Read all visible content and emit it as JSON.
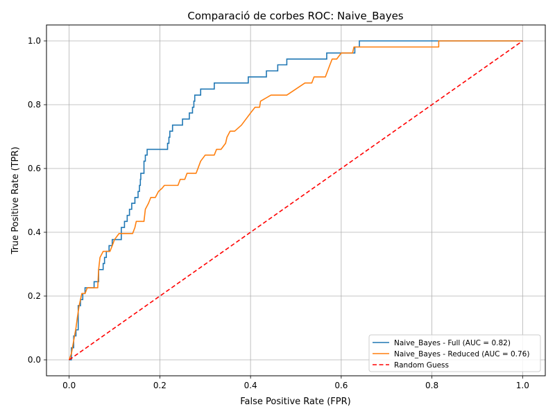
{
  "chart_data": {
    "type": "line",
    "title": "Comparació de corbes ROC: Naive_Bayes",
    "xlabel": "False Positive Rate (FPR)",
    "ylabel": "True Positive Rate (TPR)",
    "xlim": [
      -0.05,
      1.05
    ],
    "ylim": [
      -0.05,
      1.05
    ],
    "xticks": [
      0.0,
      0.2,
      0.4,
      0.6,
      0.8,
      1.0
    ],
    "xtick_labels": [
      "0.0",
      "0.2",
      "0.4",
      "0.6",
      "0.8",
      "1.0"
    ],
    "yticks": [
      0.0,
      0.2,
      0.4,
      0.6,
      0.8,
      1.0
    ],
    "ytick_labels": [
      "0.0",
      "0.2",
      "0.4",
      "0.6",
      "0.8",
      "1.0"
    ],
    "grid": true,
    "legend_position": "lower-right",
    "series": [
      {
        "name": "Naive_Bayes - Full (AUC = 0.82)",
        "color": "#1f77b4",
        "style": "solid",
        "step": true,
        "points": [
          [
            0.0,
            0.0
          ],
          [
            0.005,
            0.0
          ],
          [
            0.005,
            0.038
          ],
          [
            0.01,
            0.038
          ],
          [
            0.01,
            0.075
          ],
          [
            0.015,
            0.075
          ],
          [
            0.015,
            0.094
          ],
          [
            0.02,
            0.094
          ],
          [
            0.02,
            0.17
          ],
          [
            0.025,
            0.17
          ],
          [
            0.025,
            0.189
          ],
          [
            0.03,
            0.189
          ],
          [
            0.03,
            0.208
          ],
          [
            0.035,
            0.208
          ],
          [
            0.035,
            0.226
          ],
          [
            0.055,
            0.226
          ],
          [
            0.055,
            0.245
          ],
          [
            0.065,
            0.245
          ],
          [
            0.065,
            0.283
          ],
          [
            0.075,
            0.283
          ],
          [
            0.075,
            0.302
          ],
          [
            0.078,
            0.302
          ],
          [
            0.078,
            0.321
          ],
          [
            0.082,
            0.321
          ],
          [
            0.082,
            0.34
          ],
          [
            0.088,
            0.34
          ],
          [
            0.088,
            0.358
          ],
          [
            0.095,
            0.358
          ],
          [
            0.095,
            0.377
          ],
          [
            0.115,
            0.377
          ],
          [
            0.115,
            0.415
          ],
          [
            0.122,
            0.415
          ],
          [
            0.122,
            0.434
          ],
          [
            0.128,
            0.434
          ],
          [
            0.128,
            0.453
          ],
          [
            0.133,
            0.453
          ],
          [
            0.133,
            0.472
          ],
          [
            0.138,
            0.472
          ],
          [
            0.138,
            0.491
          ],
          [
            0.145,
            0.491
          ],
          [
            0.145,
            0.509
          ],
          [
            0.152,
            0.509
          ],
          [
            0.152,
            0.528
          ],
          [
            0.155,
            0.528
          ],
          [
            0.155,
            0.547
          ],
          [
            0.157,
            0.547
          ],
          [
            0.157,
            0.566
          ],
          [
            0.158,
            0.566
          ],
          [
            0.158,
            0.585
          ],
          [
            0.165,
            0.585
          ],
          [
            0.165,
            0.623
          ],
          [
            0.168,
            0.623
          ],
          [
            0.168,
            0.642
          ],
          [
            0.172,
            0.642
          ],
          [
            0.172,
            0.66
          ],
          [
            0.217,
            0.66
          ],
          [
            0.217,
            0.679
          ],
          [
            0.22,
            0.679
          ],
          [
            0.22,
            0.698
          ],
          [
            0.222,
            0.698
          ],
          [
            0.222,
            0.717
          ],
          [
            0.228,
            0.717
          ],
          [
            0.228,
            0.736
          ],
          [
            0.25,
            0.736
          ],
          [
            0.25,
            0.755
          ],
          [
            0.265,
            0.755
          ],
          [
            0.265,
            0.774
          ],
          [
            0.272,
            0.774
          ],
          [
            0.272,
            0.792
          ],
          [
            0.275,
            0.792
          ],
          [
            0.275,
            0.811
          ],
          [
            0.277,
            0.811
          ],
          [
            0.277,
            0.83
          ],
          [
            0.29,
            0.83
          ],
          [
            0.29,
            0.849
          ],
          [
            0.32,
            0.849
          ],
          [
            0.32,
            0.868
          ],
          [
            0.395,
            0.868
          ],
          [
            0.395,
            0.887
          ],
          [
            0.435,
            0.887
          ],
          [
            0.435,
            0.906
          ],
          [
            0.46,
            0.906
          ],
          [
            0.46,
            0.925
          ],
          [
            0.48,
            0.925
          ],
          [
            0.48,
            0.943
          ],
          [
            0.568,
            0.943
          ],
          [
            0.568,
            0.962
          ],
          [
            0.63,
            0.962
          ],
          [
            0.63,
            0.981
          ],
          [
            0.64,
            0.981
          ],
          [
            0.64,
            1.0
          ],
          [
            1.0,
            1.0
          ]
        ]
      },
      {
        "name": "Naive_Bayes - Reduced (AUC = 0.76)",
        "color": "#ff7f0e",
        "style": "solid",
        "step": false,
        "points": [
          [
            0.0,
            0.0
          ],
          [
            0.005,
            0.02
          ],
          [
            0.01,
            0.06
          ],
          [
            0.015,
            0.1
          ],
          [
            0.018,
            0.132
          ],
          [
            0.022,
            0.17
          ],
          [
            0.025,
            0.189
          ],
          [
            0.028,
            0.208
          ],
          [
            0.035,
            0.208
          ],
          [
            0.04,
            0.226
          ],
          [
            0.063,
            0.226
          ],
          [
            0.065,
            0.283
          ],
          [
            0.068,
            0.321
          ],
          [
            0.075,
            0.34
          ],
          [
            0.09,
            0.34
          ],
          [
            0.095,
            0.358
          ],
          [
            0.1,
            0.377
          ],
          [
            0.11,
            0.396
          ],
          [
            0.14,
            0.396
          ],
          [
            0.145,
            0.415
          ],
          [
            0.148,
            0.434
          ],
          [
            0.165,
            0.434
          ],
          [
            0.168,
            0.472
          ],
          [
            0.175,
            0.491
          ],
          [
            0.18,
            0.509
          ],
          [
            0.19,
            0.509
          ],
          [
            0.197,
            0.528
          ],
          [
            0.205,
            0.538
          ],
          [
            0.21,
            0.547
          ],
          [
            0.23,
            0.547
          ],
          [
            0.24,
            0.547
          ],
          [
            0.245,
            0.566
          ],
          [
            0.255,
            0.566
          ],
          [
            0.26,
            0.585
          ],
          [
            0.28,
            0.585
          ],
          [
            0.285,
            0.604
          ],
          [
            0.29,
            0.623
          ],
          [
            0.3,
            0.642
          ],
          [
            0.32,
            0.642
          ],
          [
            0.325,
            0.66
          ],
          [
            0.335,
            0.66
          ],
          [
            0.345,
            0.679
          ],
          [
            0.348,
            0.698
          ],
          [
            0.355,
            0.717
          ],
          [
            0.365,
            0.717
          ],
          [
            0.38,
            0.736
          ],
          [
            0.39,
            0.755
          ],
          [
            0.4,
            0.774
          ],
          [
            0.41,
            0.792
          ],
          [
            0.42,
            0.792
          ],
          [
            0.422,
            0.811
          ],
          [
            0.445,
            0.83
          ],
          [
            0.48,
            0.83
          ],
          [
            0.5,
            0.849
          ],
          [
            0.52,
            0.868
          ],
          [
            0.535,
            0.868
          ],
          [
            0.54,
            0.887
          ],
          [
            0.545,
            0.887
          ],
          [
            0.565,
            0.887
          ],
          [
            0.575,
            0.925
          ],
          [
            0.58,
            0.943
          ],
          [
            0.59,
            0.943
          ],
          [
            0.6,
            0.962
          ],
          [
            0.625,
            0.962
          ],
          [
            0.628,
            0.981
          ],
          [
            0.815,
            0.981
          ],
          [
            0.815,
            1.0
          ],
          [
            1.0,
            1.0
          ]
        ]
      },
      {
        "name": "Random Guess",
        "color": "#ff0000",
        "style": "dashed",
        "step": false,
        "points": [
          [
            0.0,
            0.0
          ],
          [
            1.0,
            1.0
          ]
        ]
      }
    ]
  }
}
